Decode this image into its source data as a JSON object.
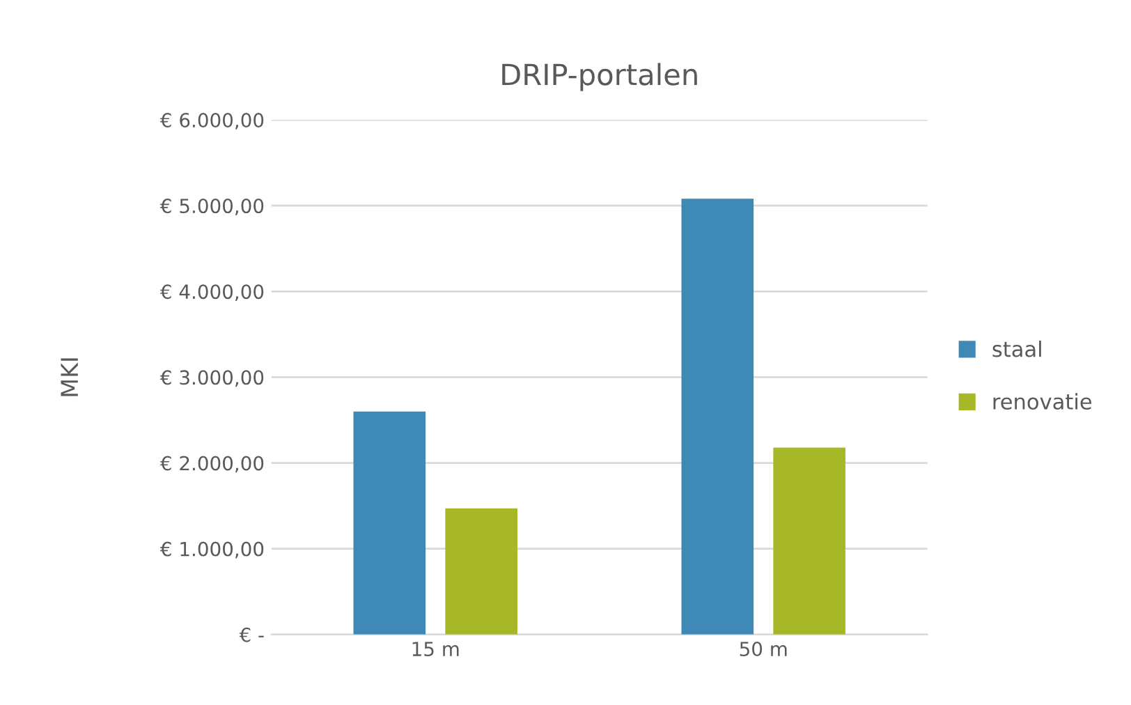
{
  "chart_data": {
    "type": "bar",
    "title": "DRIP-portalen",
    "ylabel": "MKI",
    "categories": [
      "15 m",
      "50 m"
    ],
    "series": [
      {
        "name": "staal",
        "color": "#3f89b6",
        "values": [
          2600,
          5080
        ]
      },
      {
        "name": "renovatie",
        "color": "#a6b828",
        "values": [
          1470,
          2180
        ]
      }
    ],
    "ylim": [
      0,
      6000
    ],
    "yticks": [
      {
        "value": 0,
        "label": "€ -"
      },
      {
        "value": 1000,
        "label": "€ 1.000,00"
      },
      {
        "value": 2000,
        "label": "€ 2.000,00"
      },
      {
        "value": 3000,
        "label": "€ 3.000,00"
      },
      {
        "value": 4000,
        "label": "€ 4.000,00"
      },
      {
        "value": 5000,
        "label": "€ 5.000,00"
      },
      {
        "value": 6000,
        "label": "€ 6.000,00"
      }
    ],
    "grid": "y",
    "legend": "right"
  }
}
